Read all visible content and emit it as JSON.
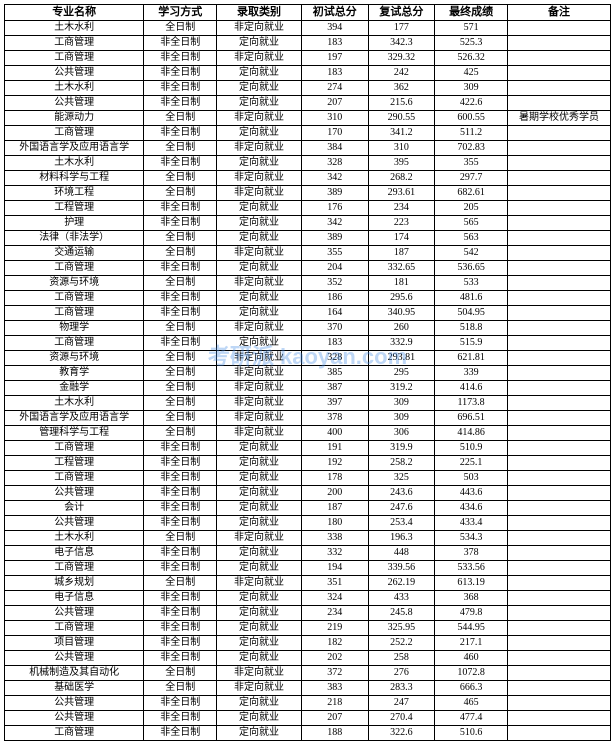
{
  "table": {
    "columns": [
      "专业名称",
      "学习方式",
      "录取类别",
      "初试总分",
      "复试总分",
      "最终成绩",
      "备注"
    ],
    "col_classes": [
      "col-major",
      "col-study",
      "col-type",
      "col-score1",
      "col-score2",
      "col-final",
      "col-remark"
    ],
    "header_fontsize": 11,
    "cell_fontsize": 10,
    "border_color": "#000000",
    "background_color": "#ffffff",
    "rows": [
      [
        "土木水利",
        "全日制",
        "非定向就业",
        "394",
        "177",
        "571",
        ""
      ],
      [
        "工商管理",
        "非全日制",
        "定向就业",
        "183",
        "342.3",
        "525.3",
        ""
      ],
      [
        "工商管理",
        "非全日制",
        "非定向就业",
        "197",
        "329.32",
        "526.32",
        ""
      ],
      [
        "公共管理",
        "非全日制",
        "定向就业",
        "183",
        "242",
        "425",
        ""
      ],
      [
        "土木水利",
        "非全日制",
        "定向就业",
        "274",
        "362",
        "309",
        ""
      ],
      [
        "公共管理",
        "非全日制",
        "定向就业",
        "207",
        "215.6",
        "422.6",
        ""
      ],
      [
        "能源动力",
        "全日制",
        "非定向就业",
        "310",
        "290.55",
        "600.55",
        "暑期学校优秀学员"
      ],
      [
        "工商管理",
        "非全日制",
        "定向就业",
        "170",
        "341.2",
        "511.2",
        ""
      ],
      [
        "外国语言学及应用语言学",
        "全日制",
        "非定向就业",
        "384",
        "310",
        "702.83",
        ""
      ],
      [
        "土木水利",
        "非全日制",
        "定向就业",
        "328",
        "395",
        "355",
        ""
      ],
      [
        "材料科学与工程",
        "全日制",
        "非定向就业",
        "342",
        "268.2",
        "297.7",
        ""
      ],
      [
        "环境工程",
        "全日制",
        "非定向就业",
        "389",
        "293.61",
        "682.61",
        ""
      ],
      [
        "工程管理",
        "非全日制",
        "定向就业",
        "176",
        "234",
        "205",
        ""
      ],
      [
        "护理",
        "非全日制",
        "定向就业",
        "342",
        "223",
        "565",
        ""
      ],
      [
        "法律（非法学）",
        "全日制",
        "定向就业",
        "389",
        "174",
        "563",
        ""
      ],
      [
        "交通运输",
        "全日制",
        "非定向就业",
        "355",
        "187",
        "542",
        ""
      ],
      [
        "工商管理",
        "非全日制",
        "定向就业",
        "204",
        "332.65",
        "536.65",
        ""
      ],
      [
        "资源与环境",
        "全日制",
        "非定向就业",
        "352",
        "181",
        "533",
        ""
      ],
      [
        "工商管理",
        "非全日制",
        "定向就业",
        "186",
        "295.6",
        "481.6",
        ""
      ],
      [
        "工商管理",
        "非全日制",
        "定向就业",
        "164",
        "340.95",
        "504.95",
        ""
      ],
      [
        "物理学",
        "全日制",
        "非定向就业",
        "370",
        "260",
        "518.8",
        ""
      ],
      [
        "工商管理",
        "非全日制",
        "定向就业",
        "183",
        "332.9",
        "515.9",
        ""
      ],
      [
        "资源与环境",
        "全日制",
        "非定向就业",
        "328",
        "293.81",
        "621.81",
        ""
      ],
      [
        "教育学",
        "全日制",
        "非定向就业",
        "385",
        "295",
        "339",
        ""
      ],
      [
        "金融学",
        "全日制",
        "非定向就业",
        "387",
        "319.2",
        "414.6",
        ""
      ],
      [
        "土木水利",
        "全日制",
        "非定向就业",
        "397",
        "309",
        "1173.8",
        ""
      ],
      [
        "外国语言学及应用语言学",
        "全日制",
        "非定向就业",
        "378",
        "309",
        "696.51",
        ""
      ],
      [
        "管理科学与工程",
        "全日制",
        "非定向就业",
        "400",
        "306",
        "414.86",
        ""
      ],
      [
        "工商管理",
        "非全日制",
        "定向就业",
        "191",
        "319.9",
        "510.9",
        ""
      ],
      [
        "工程管理",
        "非全日制",
        "定向就业",
        "192",
        "258.2",
        "225.1",
        ""
      ],
      [
        "工商管理",
        "非全日制",
        "定向就业",
        "178",
        "325",
        "503",
        ""
      ],
      [
        "公共管理",
        "非全日制",
        "定向就业",
        "200",
        "243.6",
        "443.6",
        ""
      ],
      [
        "会计",
        "非全日制",
        "定向就业",
        "187",
        "247.6",
        "434.6",
        ""
      ],
      [
        "公共管理",
        "非全日制",
        "定向就业",
        "180",
        "253.4",
        "433.4",
        ""
      ],
      [
        "土木水利",
        "全日制",
        "非定向就业",
        "338",
        "196.3",
        "534.3",
        ""
      ],
      [
        "电子信息",
        "非全日制",
        "定向就业",
        "332",
        "448",
        "378",
        ""
      ],
      [
        "工商管理",
        "非全日制",
        "定向就业",
        "194",
        "339.56",
        "533.56",
        ""
      ],
      [
        "城乡规划",
        "全日制",
        "非定向就业",
        "351",
        "262.19",
        "613.19",
        ""
      ],
      [
        "电子信息",
        "非全日制",
        "定向就业",
        "324",
        "433",
        "368",
        ""
      ],
      [
        "公共管理",
        "非全日制",
        "定向就业",
        "234",
        "245.8",
        "479.8",
        ""
      ],
      [
        "工商管理",
        "非全日制",
        "定向就业",
        "219",
        "325.95",
        "544.95",
        ""
      ],
      [
        "项目管理",
        "非全日制",
        "定向就业",
        "182",
        "252.2",
        "217.1",
        ""
      ],
      [
        "公共管理",
        "非全日制",
        "定向就业",
        "202",
        "258",
        "460",
        ""
      ],
      [
        "机械制造及其自动化",
        "全日制",
        "非定向就业",
        "372",
        "276",
        "1072.8",
        ""
      ],
      [
        "基础医学",
        "全日制",
        "非定向就业",
        "383",
        "283.3",
        "666.3",
        ""
      ],
      [
        "公共管理",
        "非全日制",
        "定向就业",
        "218",
        "247",
        "465",
        ""
      ],
      [
        "公共管理",
        "非全日制",
        "定向就业",
        "207",
        "270.4",
        "477.4",
        ""
      ],
      [
        "工商管理",
        "非全日制",
        "定向就业",
        "188",
        "322.6",
        "510.6",
        ""
      ]
    ]
  },
  "watermark": {
    "text": "考研派 kaoyan.com",
    "color": "rgba(70,140,230,0.35)",
    "fontsize": 22
  }
}
